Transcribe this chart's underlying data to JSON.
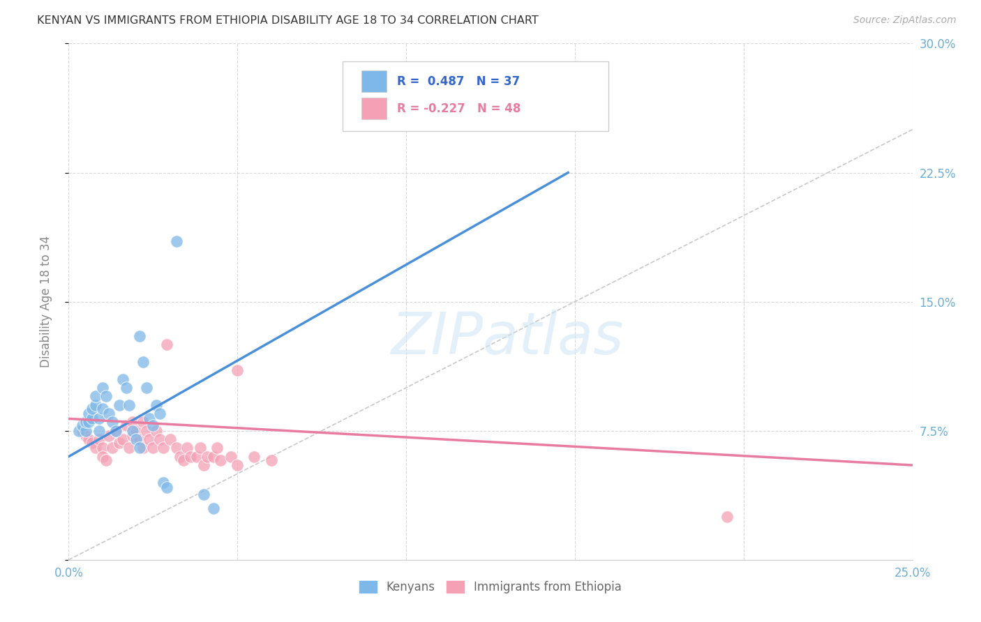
{
  "title": "KENYAN VS IMMIGRANTS FROM ETHIOPIA DISABILITY AGE 18 TO 34 CORRELATION CHART",
  "source": "Source: ZipAtlas.com",
  "ylabel": "Disability Age 18 to 34",
  "xlim": [
    0.0,
    0.25
  ],
  "ylim": [
    0.0,
    0.3
  ],
  "xticks": [
    0.0,
    0.05,
    0.1,
    0.15,
    0.2,
    0.25
  ],
  "yticks": [
    0.0,
    0.075,
    0.15,
    0.225,
    0.3
  ],
  "xtick_labels_show": [
    "0.0%",
    "",
    "",
    "",
    "",
    "25.0%"
  ],
  "ytick_labels_right": [
    "",
    "7.5%",
    "15.0%",
    "22.5%",
    "30.0%"
  ],
  "legend_labels_bottom": [
    "Kenyans",
    "Immigrants from Ethiopia"
  ],
  "legend_R_blue": "R =  0.487",
  "legend_N_blue": "N = 37",
  "legend_R_pink": "R = -0.227",
  "legend_N_pink": "N = 48",
  "blue_color": "#7eb8e8",
  "pink_color": "#f4a0b5",
  "blue_line_color": "#4a90d9",
  "pink_line_color": "#e87ca0",
  "ref_line_color": "#c8c8c8",
  "background_color": "#ffffff",
  "grid_color": "#d8d8d8",
  "watermark": "ZIPatlas",
  "title_color": "#333333",
  "axis_label_color": "#6aaed6",
  "legend_text_color": "#3366cc",
  "blue_scatter": [
    [
      0.003,
      0.075
    ],
    [
      0.004,
      0.078
    ],
    [
      0.005,
      0.075
    ],
    [
      0.005,
      0.08
    ],
    [
      0.006,
      0.08
    ],
    [
      0.006,
      0.085
    ],
    [
      0.007,
      0.082
    ],
    [
      0.007,
      0.088
    ],
    [
      0.008,
      0.09
    ],
    [
      0.008,
      0.095
    ],
    [
      0.009,
      0.075
    ],
    [
      0.009,
      0.082
    ],
    [
      0.01,
      0.088
    ],
    [
      0.01,
      0.1
    ],
    [
      0.011,
      0.095
    ],
    [
      0.012,
      0.085
    ],
    [
      0.013,
      0.08
    ],
    [
      0.014,
      0.075
    ],
    [
      0.015,
      0.09
    ],
    [
      0.016,
      0.105
    ],
    [
      0.017,
      0.1
    ],
    [
      0.018,
      0.09
    ],
    [
      0.019,
      0.075
    ],
    [
      0.02,
      0.07
    ],
    [
      0.021,
      0.065
    ],
    [
      0.021,
      0.13
    ],
    [
      0.022,
      0.115
    ],
    [
      0.023,
      0.1
    ],
    [
      0.024,
      0.082
    ],
    [
      0.025,
      0.078
    ],
    [
      0.026,
      0.09
    ],
    [
      0.027,
      0.085
    ],
    [
      0.028,
      0.045
    ],
    [
      0.029,
      0.042
    ],
    [
      0.032,
      0.185
    ],
    [
      0.04,
      0.038
    ],
    [
      0.043,
      0.03
    ]
  ],
  "pink_scatter": [
    [
      0.004,
      0.075
    ],
    [
      0.005,
      0.072
    ],
    [
      0.006,
      0.07
    ],
    [
      0.007,
      0.068
    ],
    [
      0.008,
      0.065
    ],
    [
      0.009,
      0.07
    ],
    [
      0.01,
      0.065
    ],
    [
      0.01,
      0.06
    ],
    [
      0.011,
      0.058
    ],
    [
      0.012,
      0.072
    ],
    [
      0.013,
      0.065
    ],
    [
      0.014,
      0.075
    ],
    [
      0.015,
      0.068
    ],
    [
      0.016,
      0.07
    ],
    [
      0.017,
      0.078
    ],
    [
      0.018,
      0.065
    ],
    [
      0.019,
      0.08
    ],
    [
      0.019,
      0.072
    ],
    [
      0.02,
      0.075
    ],
    [
      0.021,
      0.07
    ],
    [
      0.022,
      0.065
    ],
    [
      0.022,
      0.08
    ],
    [
      0.023,
      0.075
    ],
    [
      0.024,
      0.07
    ],
    [
      0.025,
      0.065
    ],
    [
      0.026,
      0.075
    ],
    [
      0.027,
      0.07
    ],
    [
      0.028,
      0.065
    ],
    [
      0.029,
      0.125
    ],
    [
      0.03,
      0.07
    ],
    [
      0.032,
      0.065
    ],
    [
      0.033,
      0.06
    ],
    [
      0.034,
      0.058
    ],
    [
      0.035,
      0.065
    ],
    [
      0.036,
      0.06
    ],
    [
      0.038,
      0.06
    ],
    [
      0.039,
      0.065
    ],
    [
      0.04,
      0.055
    ],
    [
      0.041,
      0.06
    ],
    [
      0.043,
      0.06
    ],
    [
      0.044,
      0.065
    ],
    [
      0.045,
      0.058
    ],
    [
      0.048,
      0.06
    ],
    [
      0.05,
      0.11
    ],
    [
      0.05,
      0.055
    ],
    [
      0.055,
      0.06
    ],
    [
      0.06,
      0.058
    ],
    [
      0.195,
      0.025
    ]
  ],
  "blue_line": [
    [
      0.0,
      0.06
    ],
    [
      0.148,
      0.225
    ]
  ],
  "pink_line": [
    [
      0.0,
      0.082
    ],
    [
      0.25,
      0.055
    ]
  ],
  "ref_line": [
    [
      0.0,
      0.0
    ],
    [
      0.3,
      0.3
    ]
  ]
}
